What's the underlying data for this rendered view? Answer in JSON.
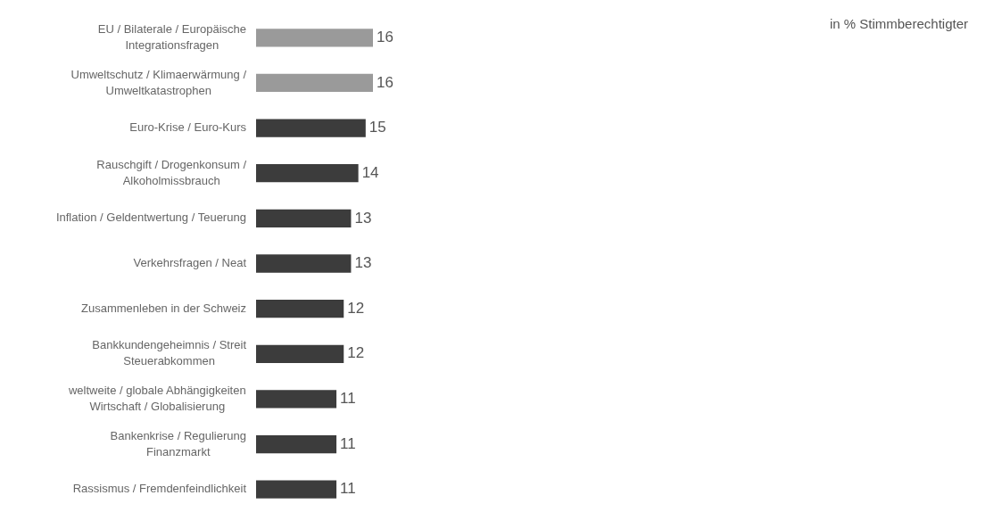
{
  "chart_data": {
    "type": "bar",
    "orientation": "horizontal",
    "categories": [
      "EU / Bilaterale / Europäische\nIntegrationsfragen",
      "Umweltschutz / Klimaerwärmung /\nUmweltkatastrophen",
      "Euro-Krise / Euro-Kurs",
      "Rauschgift / Drogenkonsum /\nAlkoholmissbrauch",
      "Inflation / Geldentwertung / Teuerung",
      "Verkehrsfragen / Neat",
      "Zusammenleben in der Schweiz",
      "Bankkundengeheimnis / Streit\nSteuerabkommen",
      "weltweite / globale Abhängigkeiten\nWirtschaft / Globalisierung",
      "Bankenkrise / Regulierung\nFinanzmarkt",
      "Rassismus / Fremdenfeindlichkeit"
    ],
    "values": [
      16,
      16,
      15,
      14,
      13,
      13,
      12,
      12,
      11,
      11,
      11
    ],
    "colors": [
      "#9a9a9a",
      "#9a9a9a",
      "#3c3c3c",
      "#3c3c3c",
      "#3c3c3c",
      "#3c3c3c",
      "#3c3c3c",
      "#3c3c3c",
      "#3c3c3c",
      "#3c3c3c",
      "#3c3c3c"
    ],
    "data_labels": true,
    "annotations": [
      "in % Stimmberechtigter"
    ]
  }
}
